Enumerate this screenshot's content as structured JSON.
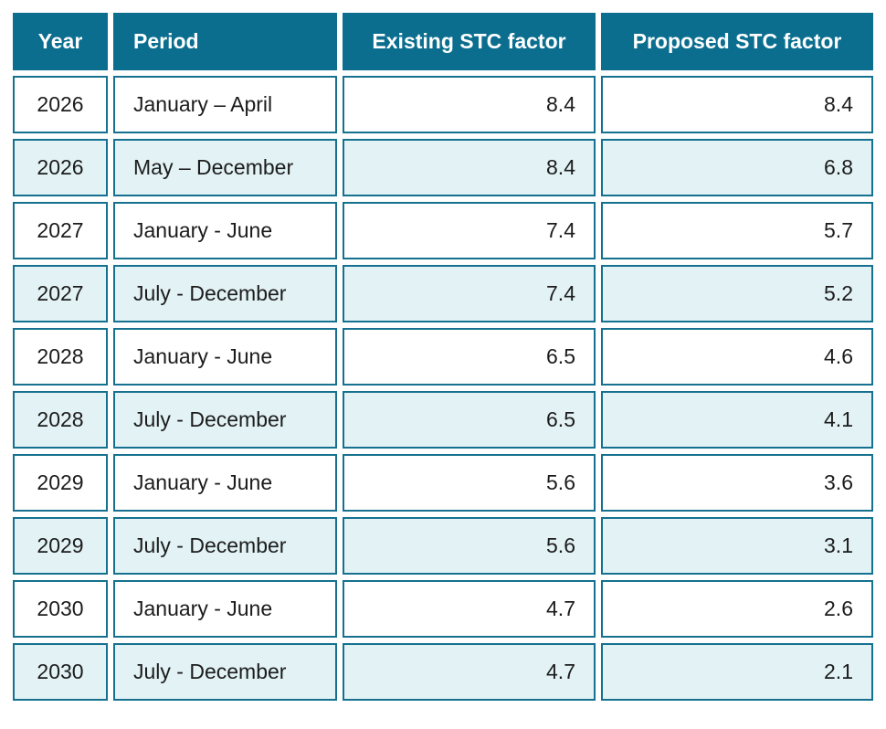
{
  "chart_data": {
    "type": "table",
    "title": "",
    "columns": [
      "Year",
      "Period",
      "Existing STC factor",
      "Proposed STC factor"
    ],
    "rows": [
      [
        "2026",
        "January – April",
        "8.4",
        "8.4"
      ],
      [
        "2026",
        "May – December",
        "8.4",
        "6.8"
      ],
      [
        "2027",
        "January - June",
        "7.4",
        "5.7"
      ],
      [
        "2027",
        "July - December",
        "7.4",
        "5.2"
      ],
      [
        "2028",
        "January - June",
        "6.5",
        "4.6"
      ],
      [
        "2028",
        "July - December",
        "6.5",
        "4.1"
      ],
      [
        "2029",
        "January - June",
        "5.6",
        "3.6"
      ],
      [
        "2029",
        "July - December",
        "5.6",
        "3.1"
      ],
      [
        "2030",
        "January - June",
        "4.7",
        "2.6"
      ],
      [
        "2030",
        "July - December",
        "4.7",
        "2.1"
      ]
    ]
  },
  "table": {
    "headers": {
      "year": "Year",
      "period": "Period",
      "existing": "Existing STC factor",
      "proposed": "Proposed STC factor"
    },
    "rows": [
      {
        "year": "2026",
        "period": "January – April",
        "existing": "8.4",
        "proposed": "8.4"
      },
      {
        "year": "2026",
        "period": "May – December",
        "existing": "8.4",
        "proposed": "6.8"
      },
      {
        "year": "2027",
        "period": "January - June",
        "existing": "7.4",
        "proposed": "5.7"
      },
      {
        "year": "2027",
        "period": "July - December",
        "existing": "7.4",
        "proposed": "5.2"
      },
      {
        "year": "2028",
        "period": "January - June",
        "existing": "6.5",
        "proposed": "4.6"
      },
      {
        "year": "2028",
        "period": "July - December",
        "existing": "6.5",
        "proposed": "4.1"
      },
      {
        "year": "2029",
        "period": "January - June",
        "existing": "5.6",
        "proposed": "3.6"
      },
      {
        "year": "2029",
        "period": "July - December",
        "existing": "5.6",
        "proposed": "3.1"
      },
      {
        "year": "2030",
        "period": "January - June",
        "existing": "4.7",
        "proposed": "2.6"
      },
      {
        "year": "2030",
        "period": "July - December",
        "existing": "4.7",
        "proposed": "2.1"
      }
    ]
  },
  "colors": {
    "header_bg": "#0b6e8f",
    "header_text": "#ffffff",
    "cell_border": "#15718f",
    "row_bg": "#ffffff",
    "row_alt_bg": "#e2f2f5",
    "body_text": "#1c1c1c",
    "page_bg": "#ffffff"
  }
}
